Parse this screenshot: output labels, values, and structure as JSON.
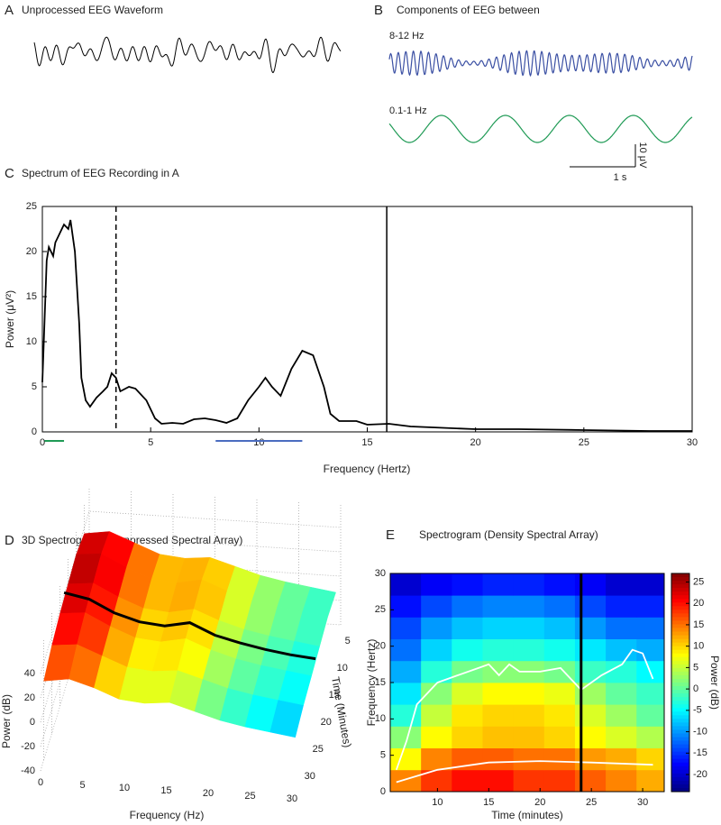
{
  "chart_data": [
    {
      "type": "waveform",
      "panel": "A",
      "title": "Unprocessed EEG Waveform",
      "color": "#000000"
    },
    {
      "type": "waveform",
      "panel": "B",
      "title": "Components of EEG between",
      "series": [
        {
          "name": "8-12 Hz",
          "color": "#3a4fa3"
        },
        {
          "name": "0.1-1 Hz",
          "color": "#1f9a55"
        }
      ],
      "scale_bar": {
        "y_label": "10 μV",
        "x_label": "1 s"
      }
    },
    {
      "type": "line",
      "panel": "C",
      "title": "Spectrum of EEG Recording in A",
      "xlabel": "Frequency (Hertz)",
      "ylabel": "Power (μV²)",
      "color": "#000000",
      "x": [
        0,
        0.2,
        0.3,
        0.5,
        0.6,
        0.8,
        1.0,
        1.2,
        1.3,
        1.5,
        1.7,
        1.8,
        2.0,
        2.2,
        2.5,
        2.8,
        3.0,
        3.2,
        3.4,
        3.6,
        4.0,
        4.3,
        4.8,
        5.2,
        5.5,
        6,
        6.5,
        7,
        7.5,
        8,
        8.5,
        9,
        9.5,
        10,
        10.3,
        10.6,
        11,
        11.5,
        12,
        12.5,
        13,
        13.3,
        13.7,
        14.5,
        15,
        16,
        17,
        18,
        20,
        22,
        25,
        28,
        30
      ],
      "values": [
        5.5,
        19,
        20.5,
        19.5,
        21,
        22,
        23,
        22.5,
        23.5,
        20,
        12,
        6,
        3.5,
        2.8,
        3.8,
        4.5,
        5,
        6.5,
        6,
        4.5,
        5,
        4.8,
        3.5,
        1.5,
        0.9,
        1,
        0.9,
        1.4,
        1.5,
        1.3,
        1,
        1.5,
        3.5,
        5,
        6,
        5,
        4,
        7,
        9,
        8.5,
        5,
        2,
        1.2,
        1.2,
        0.8,
        0.9,
        0.6,
        0.5,
        0.3,
        0.3,
        0.2,
        0.1,
        0.1
      ],
      "xlim": [
        0,
        30
      ],
      "ylim": [
        0,
        25
      ],
      "xticks": [
        0,
        5,
        10,
        15,
        20,
        25,
        30
      ],
      "yticks": [
        0,
        5,
        10,
        15,
        20,
        25
      ],
      "grid": false,
      "vlines": [
        {
          "x": 3.4,
          "style": "dashed"
        },
        {
          "x": 15.9,
          "style": "solid"
        }
      ],
      "bands": [
        {
          "range": [
            0.1,
            1
          ],
          "color": "#1f9a55"
        },
        {
          "range": [
            8,
            12
          ],
          "color": "#4a6cc0"
        }
      ]
    },
    {
      "type": "surface3d",
      "panel": "D",
      "title": "3D Spectrogram (Compressed Spectral Array)",
      "xlabel": "Frequency (Hz)",
      "zlabel": "Power (dB)",
      "tlabel": "Time (Minutes)",
      "x": [
        0,
        3,
        6,
        9,
        12,
        15,
        18,
        21,
        24,
        27,
        30
      ],
      "t": [
        5,
        10,
        15,
        20,
        25,
        30
      ],
      "z": [
        [
          35,
          38,
          30,
          22,
          20,
          22,
          16,
          10,
          6,
          3,
          0
        ],
        [
          40,
          42,
          32,
          24,
          22,
          26,
          18,
          12,
          8,
          5,
          2
        ],
        [
          38,
          40,
          30,
          22,
          20,
          24,
          16,
          10,
          6,
          3,
          0
        ],
        [
          36,
          38,
          28,
          20,
          18,
          22,
          14,
          8,
          4,
          1,
          -2
        ],
        [
          32,
          34,
          26,
          18,
          16,
          18,
          12,
          6,
          2,
          -1,
          -4
        ],
        [
          25,
          28,
          22,
          14,
          12,
          14,
          8,
          2,
          -2,
          -5,
          -8
        ]
      ],
      "line": {
        "color": "#000000",
        "values": [
          42,
          38,
          28,
          22,
          20,
          24,
          15,
          10,
          6,
          3,
          1
        ]
      },
      "xlim": [
        0,
        30
      ],
      "tlim": [
        2,
        32
      ],
      "zlim": [
        -40,
        60
      ],
      "clim": [
        -30,
        45
      ],
      "xticks": [
        0,
        5,
        10,
        15,
        20,
        25,
        30
      ],
      "tticks": [
        5,
        10,
        15,
        20,
        25,
        30
      ],
      "zticks": [
        -40,
        -20,
        0,
        20,
        40
      ]
    },
    {
      "type": "heatmap",
      "panel": "E",
      "title": "Spectrogram (Density Spectral Array)",
      "xlabel": "Time (minutes)",
      "ylabel": "Frequency (Hertz)",
      "colorbar_label": "Power (dB)",
      "x_edges": [
        5.4,
        8.4,
        11.4,
        14.4,
        17.4,
        20.4,
        23.4,
        26.4,
        29.4,
        32.1
      ],
      "y_edges": [
        0,
        3,
        6,
        9,
        12,
        15,
        18,
        21,
        24,
        27,
        30
      ],
      "z": [
        [
          14,
          18,
          20,
          20,
          18,
          18,
          16,
          14,
          12
        ],
        [
          8,
          14,
          16,
          16,
          15,
          15,
          13,
          12,
          10
        ],
        [
          2,
          8,
          10,
          11,
          11,
          10,
          8,
          6,
          4
        ],
        [
          -3,
          5,
          9,
          10,
          10,
          9,
          6,
          3,
          0
        ],
        [
          -6,
          2,
          6,
          8,
          8,
          7,
          3,
          0,
          -2
        ],
        [
          -9,
          -3,
          1,
          2,
          2,
          1,
          -2,
          -3,
          -5
        ],
        [
          -12,
          -7,
          -4,
          -3,
          -3,
          -4,
          -6,
          -8,
          -9
        ],
        [
          -14,
          -10,
          -8,
          -7,
          -7,
          -8,
          -10,
          -12,
          -12
        ],
        [
          -17,
          -14,
          -12,
          -11,
          -11,
          -12,
          -14,
          -16,
          -16
        ],
        [
          -20,
          -18,
          -17,
          -16,
          -16,
          -17,
          -18,
          -20,
          -20
        ]
      ],
      "lines": [
        {
          "color": "#ffffff",
          "x": [
            6,
            7,
            8,
            10,
            12,
            14,
            15,
            16,
            17,
            18,
            20,
            22,
            24,
            26,
            28,
            29,
            30,
            31
          ],
          "values": [
            3,
            7,
            12,
            15,
            16,
            17,
            17.5,
            16,
            17.5,
            16.5,
            16.5,
            17,
            14,
            16,
            17.5,
            19.5,
            19,
            15.5
          ]
        },
        {
          "color": "#ffffff",
          "x": [
            6,
            10,
            15,
            20,
            25,
            31
          ],
          "values": [
            1.3,
            3,
            4,
            4.2,
            4,
            3.7
          ]
        }
      ],
      "vline": {
        "x": 24,
        "color": "#000000"
      },
      "xlim": [
        5.4,
        32.1
      ],
      "ylim": [
        0,
        30
      ],
      "clim": [
        -24,
        27
      ],
      "xticks": [
        10,
        15,
        20,
        25,
        30
      ],
      "yticks": [
        0,
        5,
        10,
        15,
        20,
        25,
        30
      ],
      "cticks": [
        -20,
        -15,
        -10,
        -5,
        0,
        5,
        10,
        15,
        20,
        25
      ]
    }
  ]
}
